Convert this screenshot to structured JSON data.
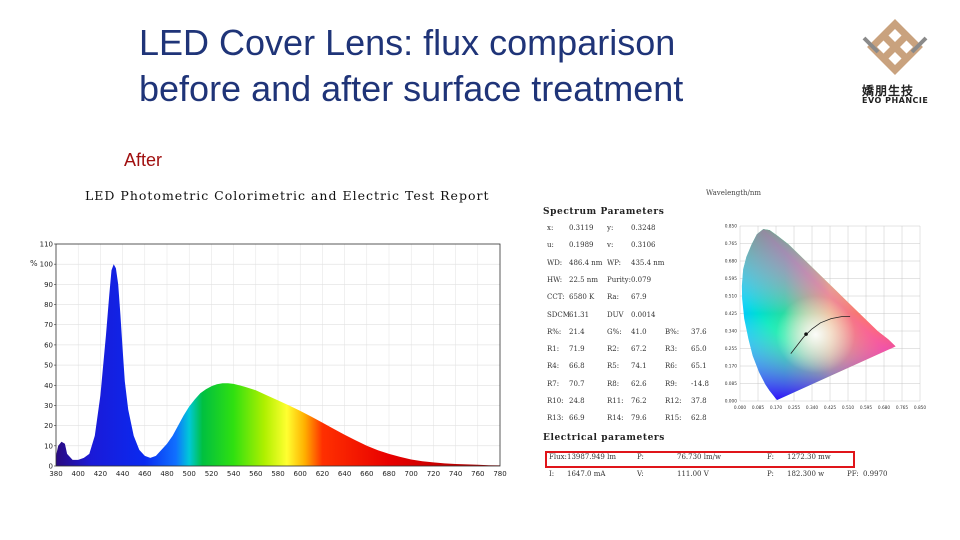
{
  "slide": {
    "title_line1": "LED Cover Lens: flux comparison",
    "title_line2": "before and after surface treatment",
    "subtitle": "After",
    "logo_cn": "嬌朋生技",
    "logo_en": "EVO PHANCIE",
    "logo_color": "#c9a27e"
  },
  "report": {
    "title": "LED Photometric Colorimetric and Electric Test Report",
    "wavelength_label": "Wavelength/nm",
    "spectrum_params_heading": "Spectrum Parameters",
    "electrical_heading": "Electrical parameters",
    "params_rows": [
      [
        "x:",
        "0.3119",
        "y:",
        "0.3248",
        "",
        ""
      ],
      [
        "u:",
        "0.1989",
        "v:",
        "0.3106",
        "",
        ""
      ],
      [
        "WD:",
        "486.4 nm",
        "WP:",
        "435.4 nm",
        "",
        ""
      ],
      [
        "HW:",
        "22.5 nm",
        "Purity:",
        "0.079",
        "",
        ""
      ],
      [
        "CCT:",
        "6580 K",
        "Ra:",
        "67.9",
        "",
        ""
      ],
      [
        "SDCM",
        "61.31",
        "DUV",
        "0.0014",
        "",
        ""
      ],
      [
        "R%:",
        "21.4",
        "G%:",
        "41.0",
        "B%:",
        "37.6"
      ],
      [
        "R1:",
        "71.9",
        "R2:",
        "67.2",
        "R3:",
        "65.0"
      ],
      [
        "R4:",
        "66.8",
        "R5:",
        "74.1",
        "R6:",
        "65.1"
      ],
      [
        "R7:",
        "70.7",
        "R8:",
        "62.6",
        "R9:",
        "-14.8"
      ],
      [
        "R10:",
        "24.8",
        "R11:",
        "76.2",
        "R12:",
        "37.8"
      ],
      [
        "R13:",
        "66.9",
        "R14:",
        "79.6",
        "R15:",
        "62.8"
      ]
    ],
    "electrical_rows": [
      [
        "Flux:",
        "13987.949 lm",
        "P:",
        "76.730 lm/w",
        "F:",
        "1272.30 mw",
        "",
        ""
      ],
      [
        "I:",
        "1647.0 mA",
        "V:",
        "111.00 V",
        "P:",
        "182.300 w",
        "PF:",
        "0.9970"
      ]
    ],
    "highlight_color": "#e0151a"
  },
  "chart_data": [
    {
      "type": "line",
      "title": "",
      "xlabel": "",
      "ylabel": "%",
      "xlim": [
        380,
        780
      ],
      "ylim": [
        0,
        110
      ],
      "grid": true,
      "x_ticks": [
        380,
        400,
        420,
        440,
        460,
        480,
        500,
        520,
        540,
        560,
        580,
        600,
        620,
        640,
        660,
        680,
        700,
        720,
        740,
        760,
        780
      ],
      "y_ticks": [
        0,
        10,
        20,
        30,
        40,
        50,
        60,
        70,
        80,
        90,
        100,
        110
      ],
      "series": [
        {
          "x": [
            380,
            382,
            385,
            388,
            390,
            395,
            400,
            405,
            410,
            415,
            420,
            425,
            428,
            430,
            432,
            434,
            436,
            438,
            440,
            442,
            445,
            450,
            455,
            460,
            465,
            470,
            475,
            480,
            485,
            490,
            495,
            500,
            505,
            510,
            515,
            520,
            525,
            530,
            535,
            540,
            545,
            550,
            560,
            570,
            580,
            590,
            600,
            610,
            620,
            630,
            640,
            650,
            660,
            670,
            680,
            690,
            700,
            710,
            720,
            730,
            740,
            750,
            760,
            770,
            780
          ],
          "y": [
            5,
            10,
            12,
            11,
            6,
            3,
            3,
            4,
            6,
            15,
            35,
            65,
            85,
            97,
            100,
            98,
            90,
            75,
            58,
            42,
            28,
            15,
            8,
            5,
            4,
            5,
            8,
            11,
            15,
            20,
            25,
            29.5,
            33,
            36,
            38,
            39.5,
            40.5,
            41,
            41,
            40.7,
            40,
            39.3,
            37.5,
            35,
            32.5,
            30,
            27.3,
            24.5,
            21.5,
            18.5,
            15.5,
            12.7,
            10,
            7.8,
            6,
            4.5,
            3.2,
            2.4,
            1.8,
            1.3,
            1,
            0.8,
            0.6,
            0.4,
            0.3
          ]
        }
      ]
    },
    {
      "type": "scatter",
      "title": "",
      "x_ticks": [
        "0.000",
        "0.085",
        "0.170",
        "0.255",
        "0.340",
        "0.425",
        "0.510",
        "0.595",
        "0.680",
        "0.765",
        "0.850"
      ],
      "y_ticks": [
        "0.850",
        "0.765",
        "0.680",
        "0.595",
        "0.510",
        "0.425",
        "0.340",
        "0.255",
        "0.170",
        "0.085",
        "0.000"
      ],
      "xlim": [
        0,
        0.85
      ],
      "ylim": [
        0,
        0.85
      ],
      "grid": true,
      "points": [
        {
          "x": 0.3119,
          "y": 0.3248
        }
      ]
    }
  ]
}
